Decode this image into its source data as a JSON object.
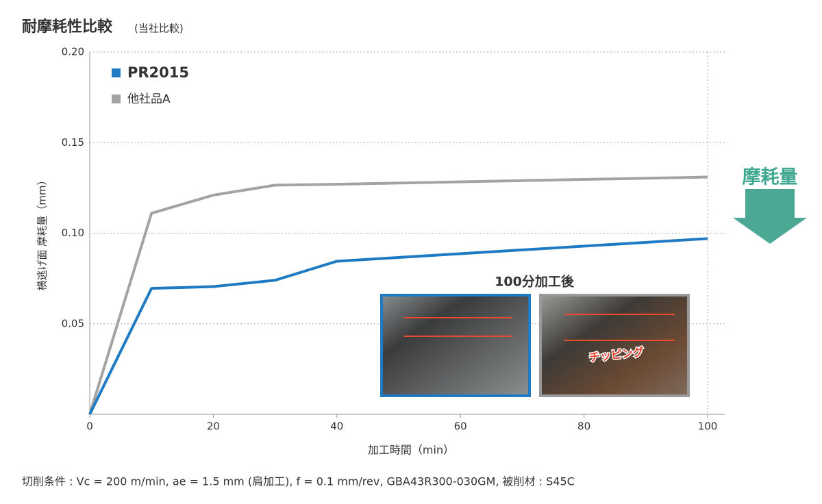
{
  "chart_data": {
    "type": "line",
    "title": "耐摩耗性比較",
    "subtitle": "(当社比較)",
    "y_label": "横逃げ面 摩耗量（mm）",
    "x_label": "加工時間（min）",
    "x": [
      0,
      10,
      20,
      30,
      40,
      100
    ],
    "series": [
      {
        "name": "PR2015",
        "color": "#1f7ac4",
        "values": [
          0,
          0.0695,
          0.0705,
          0.074,
          0.0845,
          0.097
        ]
      },
      {
        "name": "他社品A",
        "color": "#a3a3a3",
        "values": [
          0,
          0.111,
          0.121,
          0.1265,
          0.127,
          0.131
        ]
      }
    ],
    "xlim": [
      0,
      100
    ],
    "xticks": [
      0,
      20,
      40,
      60,
      80,
      100
    ],
    "ylim": [
      0,
      0.2
    ],
    "yticks": [
      0.05,
      {
        "value": 0.1,
        "label": "0.10"
      },
      0.15,
      {
        "value": 0.2,
        "label": "0.20"
      }
    ],
    "grid": true,
    "legend": "upper left",
    "annotations": {
      "arrow_label": "摩耗量",
      "inset_title": "100分加工後",
      "chipping": "チッピング"
    },
    "footnote": "切削条件 : Vc = 200 m/min, ae = 1.5 mm (肩加工), f = 0.1 mm/rev, GBA43R300-030GM, 被削材 : S45C"
  }
}
